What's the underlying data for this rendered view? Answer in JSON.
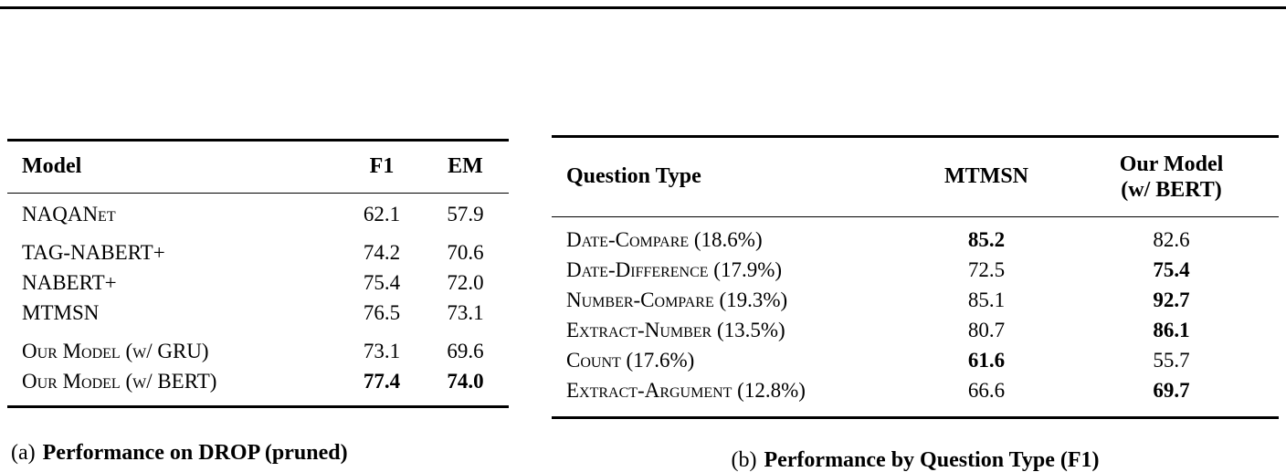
{
  "table_a": {
    "header": {
      "model": "Model",
      "f1": "F1",
      "em": "EM"
    },
    "groups": [
      {
        "rows": [
          {
            "model": "NAQANet",
            "f1": "62.1",
            "em": "57.9"
          }
        ]
      },
      {
        "rows": [
          {
            "model": "TAG-NABERT+",
            "f1": "74.2",
            "em": "70.6"
          },
          {
            "model": "NABERT+",
            "f1": "75.4",
            "em": "72.0"
          },
          {
            "model": "MTMSN",
            "f1": "76.5",
            "em": "73.1"
          }
        ]
      },
      {
        "rows": [
          {
            "model": "Our Model (w/ GRU)",
            "f1": "73.1",
            "em": "69.6"
          },
          {
            "model": "Our Model (w/ BERT)",
            "f1": "77.4",
            "em": "74.0"
          }
        ]
      }
    ],
    "caption": {
      "label": "(a)",
      "text": "Performance on DROP (pruned)"
    }
  },
  "table_b": {
    "header": {
      "question_type": "Question Type",
      "mtmsn": "MTMSN",
      "our_model_line1": "Our Model",
      "our_model_line2": "(w/ BERT)"
    },
    "rows": [
      {
        "label": "Date-Compare (18.6%)",
        "mtmsn": "85.2",
        "our": "82.6"
      },
      {
        "label": "Date-Difference (17.9%)",
        "mtmsn": "72.5",
        "our": "75.4"
      },
      {
        "label": "Number-Compare (19.3%)",
        "mtmsn": "85.1",
        "our": "92.7"
      },
      {
        "label": "Extract-Number (13.5%)",
        "mtmsn": "80.7",
        "our": "86.1"
      },
      {
        "label": "Count (17.6%)",
        "mtmsn": "61.6",
        "our": "55.7"
      },
      {
        "label": "Extract-Argument (12.8%)",
        "mtmsn": "66.6",
        "our": "69.7"
      }
    ],
    "caption": {
      "label": "(b)",
      "text": "Performance by Question Type (F1)"
    }
  }
}
